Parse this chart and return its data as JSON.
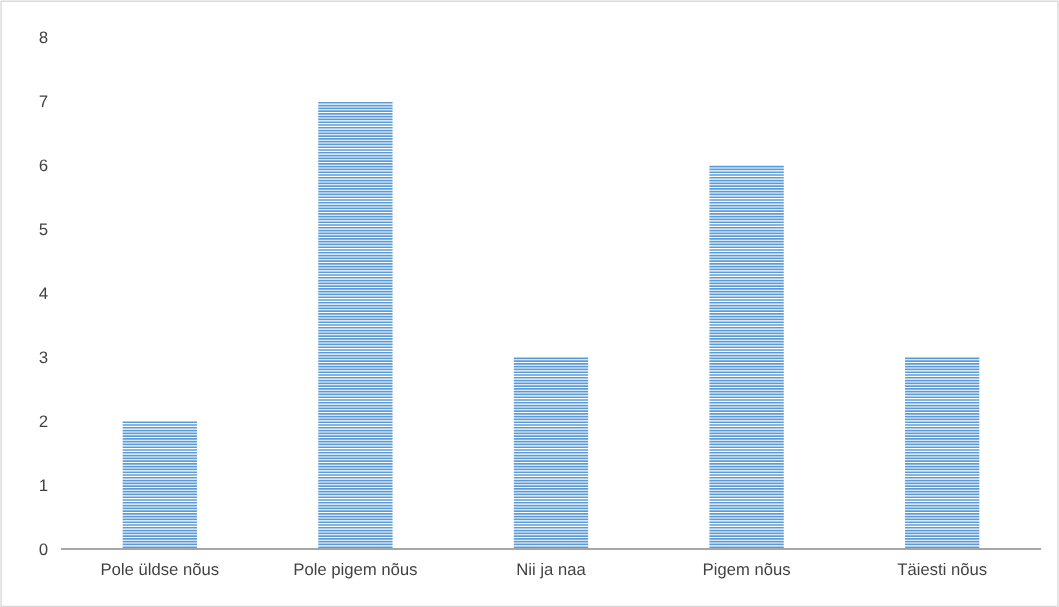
{
  "chart_data": {
    "type": "bar",
    "categories": [
      "Pole üldse nõus",
      "Pole pigem nõus",
      "Nii ja naa",
      "Pigem nõus",
      "Täiesti nõus"
    ],
    "values": [
      2,
      7,
      3,
      6,
      3
    ],
    "color": "#5b9bd5",
    "ylim": [
      0,
      8
    ],
    "yticks": [
      0,
      1,
      2,
      3,
      4,
      5,
      6,
      7,
      8
    ],
    "grid": false,
    "legend": false
  }
}
